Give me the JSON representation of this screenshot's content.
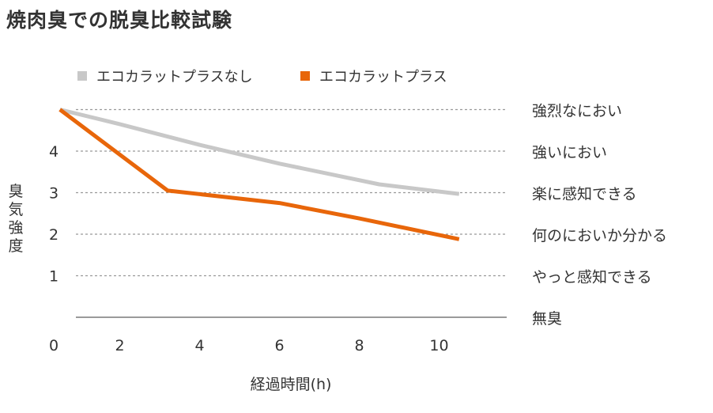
{
  "title": "焼肉臭での脱臭比較試験",
  "chart_data": {
    "type": "line",
    "xlabel": "経過時間(h)",
    "ylabel": "臭気強度",
    "xlim": [
      0,
      11
    ],
    "ylim": [
      0,
      5
    ],
    "x_ticks": [
      0,
      2,
      4,
      6,
      8,
      10
    ],
    "y_ticks": [
      1,
      2,
      3,
      4
    ],
    "grid": "horizontal-dashed",
    "legend": "top",
    "level_labels": [
      {
        "value": 5,
        "label": "強烈なにおい"
      },
      {
        "value": 4,
        "label": "強いにおい"
      },
      {
        "value": 3,
        "label": "楽に感知できる"
      },
      {
        "value": 2,
        "label": "何のにおいか分かる"
      },
      {
        "value": 1,
        "label": "やっと感知できる"
      },
      {
        "value": 0,
        "label": "無臭"
      }
    ],
    "series": [
      {
        "name": "エコカラットプラスなし",
        "color": "#c8c8c8",
        "points": [
          [
            0.5,
            5.0
          ],
          [
            2.0,
            4.65
          ],
          [
            4.0,
            4.15
          ],
          [
            6.0,
            3.7
          ],
          [
            8.5,
            3.2
          ],
          [
            10.5,
            2.97
          ]
        ]
      },
      {
        "name": "エコカラットプラス",
        "color": "#e8660a",
        "points": [
          [
            0.5,
            5.0
          ],
          [
            3.2,
            3.05
          ],
          [
            6.0,
            2.75
          ],
          [
            8.0,
            2.38
          ],
          [
            10.5,
            1.88
          ]
        ]
      }
    ]
  }
}
